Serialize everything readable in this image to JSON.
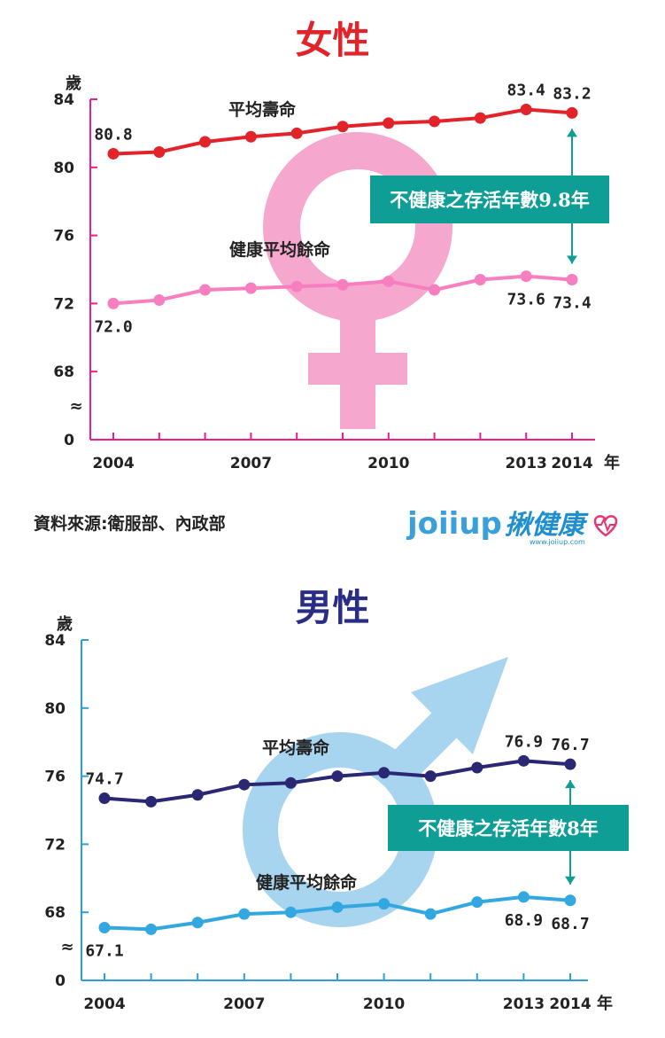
{
  "female_title": "女性",
  "male_title": "男性",
  "source": "資料來源:衛服部、內政部",
  "logo": {
    "brand": "joiiup",
    "brand_cn": "揪健康",
    "url": "www.joiiup.com"
  },
  "chart_data": [
    {
      "type": "line",
      "title": "女性",
      "ylabel": "歲",
      "xlabel": "年",
      "ylim": [
        64,
        84
      ],
      "y_ticks": [
        "0",
        "68",
        "72",
        "76",
        "80",
        "84"
      ],
      "axis_break": "≈",
      "x": [
        2004,
        2005,
        2006,
        2007,
        2008,
        2009,
        2010,
        2011,
        2012,
        2013,
        2014
      ],
      "x_tick_labels": [
        "2004",
        "2007",
        "2010",
        "2013",
        "2014"
      ],
      "x_tick_years": [
        2004,
        2007,
        2010,
        2013,
        2014
      ],
      "series": [
        {
          "name": "平均壽命",
          "color": "#e2232a",
          "values": [
            80.8,
            80.9,
            81.5,
            81.8,
            82.0,
            82.4,
            82.6,
            82.7,
            82.9,
            83.4,
            83.2
          ]
        },
        {
          "name": "健康平均餘命",
          "color": "#f77fbf",
          "values": [
            72.0,
            72.2,
            72.8,
            72.9,
            73.0,
            73.1,
            73.3,
            72.8,
            73.4,
            73.6,
            73.4
          ]
        }
      ],
      "data_labels": [
        {
          "series": 0,
          "index": 0,
          "text": "80.8"
        },
        {
          "series": 0,
          "index": 9,
          "text": "83.4"
        },
        {
          "series": 0,
          "index": 10,
          "text": "83.2"
        },
        {
          "series": 1,
          "index": 0,
          "text": "72.0"
        },
        {
          "series": 1,
          "index": 9,
          "text": "73.6"
        },
        {
          "series": 1,
          "index": 10,
          "text": "73.4"
        }
      ],
      "annotation": "不健康之存活年數9.8年",
      "accent_color": "#ec1c8c",
      "box_color": "#0f9e95",
      "symbol": "female",
      "symbol_color": "#f5a7cd"
    },
    {
      "type": "line",
      "title": "男性",
      "ylabel": "歲",
      "xlabel": "年",
      "ylim": [
        64,
        84
      ],
      "y_ticks": [
        "0",
        "68",
        "72",
        "76",
        "80",
        "84"
      ],
      "axis_break": "≈",
      "x": [
        2004,
        2005,
        2006,
        2007,
        2008,
        2009,
        2010,
        2011,
        2012,
        2013,
        2014
      ],
      "x_tick_labels": [
        "2004",
        "2007",
        "2010",
        "2013",
        "2014"
      ],
      "x_tick_years": [
        2004,
        2007,
        2010,
        2013,
        2014
      ],
      "series": [
        {
          "name": "平均壽命",
          "color": "#2a2773",
          "values": [
            74.7,
            74.5,
            74.9,
            75.5,
            75.6,
            76.0,
            76.2,
            76.0,
            76.5,
            76.9,
            76.7
          ]
        },
        {
          "name": "健康平均餘命",
          "color": "#33a7e0",
          "values": [
            67.1,
            67.0,
            67.4,
            67.9,
            68.0,
            68.3,
            68.5,
            67.9,
            68.6,
            68.9,
            68.7
          ]
        }
      ],
      "data_labels": [
        {
          "series": 0,
          "index": 0,
          "text": "74.7"
        },
        {
          "series": 0,
          "index": 9,
          "text": "76.9"
        },
        {
          "series": 0,
          "index": 10,
          "text": "76.7"
        },
        {
          "series": 1,
          "index": 0,
          "text": "67.1"
        },
        {
          "series": 1,
          "index": 9,
          "text": "68.9"
        },
        {
          "series": 1,
          "index": 10,
          "text": "68.7"
        }
      ],
      "annotation": "不健康之存活年數8年",
      "accent_color": "#2ca0d6",
      "box_color": "#0f9e95",
      "symbol": "male",
      "symbol_color": "#a7d4ef"
    }
  ]
}
